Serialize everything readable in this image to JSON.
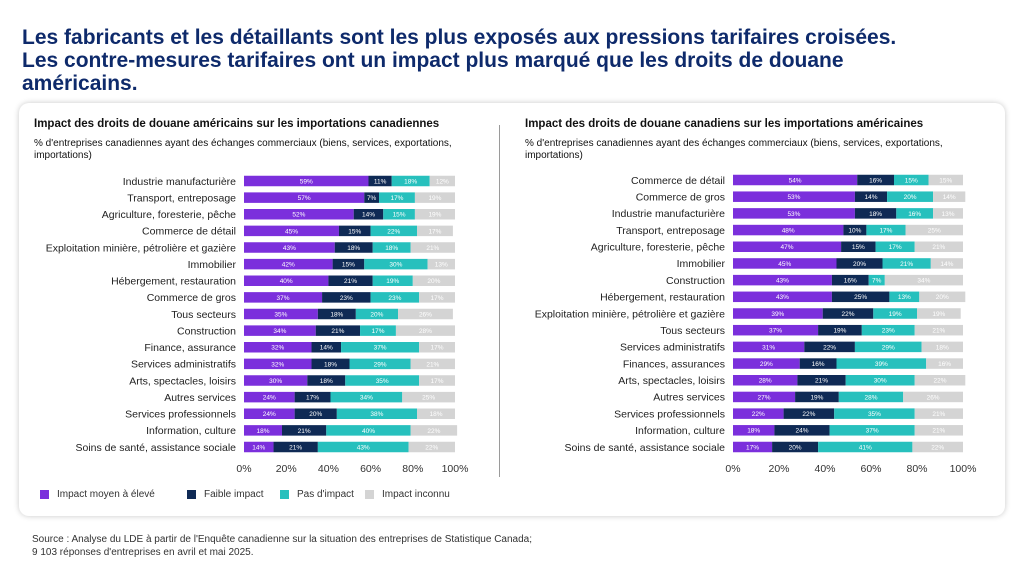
{
  "title": {
    "line1": "Les fabricants et les détaillants sont les plus exposés aux pressions tarifaires croisées.",
    "line2": "Les contre-mesures tarifaires ont un impact plus marqué que les droits de douane",
    "line3": "américains."
  },
  "legend": {
    "high": "Impact moyen à élevé",
    "low": "Faible impact",
    "none": "Pas d'impact",
    "unknown": "Impact inconnu"
  },
  "colors": {
    "high": "#7b2fdc",
    "low": "#0f2a55",
    "none": "#27c0bd",
    "unknown": "#d4d4d4",
    "title": "#0e2a6b"
  },
  "source": {
    "line1": "Source : Analyse du LDE à partir de l'Enquête canadienne sur la situation des entreprises de Statistique Canada;",
    "line2": "9 103 réponses d'entreprises en avril et mai 2025."
  },
  "chart_data": [
    {
      "type": "bar",
      "orientation": "horizontal",
      "stacked": true,
      "title": "Impact des droits de douane américains sur les importations canadiennes",
      "subtitle": "% d'entreprises canadiennes ayant des échanges commerciaux (biens, services, exportations, importations)",
      "xlim": [
        0,
        100
      ],
      "x_ticks": [
        "0%",
        "20%",
        "40%",
        "60%",
        "80%",
        "100%"
      ],
      "legend_position": "bottom-left",
      "categories": [
        "Industrie manufacturière",
        "Transport, entreposage",
        "Agriculture, foresterie, pêche",
        "Commerce de détail",
        "Exploitation minière, pétrolière et gazière",
        "Immobilier",
        "Hébergement, restauration",
        "Commerce de gros",
        "Tous secteurs",
        "Construction",
        "Finance, assurance",
        "Services administratifs",
        "Arts, spectacles, loisirs",
        "Autres services",
        "Services professionnels",
        "Information, culture",
        "Soins de santé, assistance sociale"
      ],
      "series": [
        {
          "name": "Impact moyen à élevé",
          "values": [
            59,
            57,
            52,
            45,
            43,
            42,
            40,
            37,
            35,
            34,
            32,
            32,
            30,
            24,
            24,
            18,
            14
          ]
        },
        {
          "name": "Faible impact",
          "values": [
            11,
            7,
            14,
            15,
            18,
            15,
            21,
            23,
            18,
            21,
            14,
            18,
            18,
            17,
            20,
            21,
            21
          ]
        },
        {
          "name": "Pas d'impact",
          "values": [
            18,
            17,
            15,
            22,
            18,
            30,
            19,
            23,
            20,
            17,
            37,
            29,
            35,
            34,
            38,
            40,
            43
          ]
        },
        {
          "name": "Impact inconnu",
          "values": [
            12,
            19,
            19,
            17,
            21,
            13,
            20,
            17,
            26,
            28,
            17,
            21,
            17,
            25,
            18,
            22,
            22
          ]
        }
      ]
    },
    {
      "type": "bar",
      "orientation": "horizontal",
      "stacked": true,
      "title": "Impact des droits de douane canadiens sur les importations américaines",
      "subtitle": "% d'entreprises canadiennes ayant des échanges commerciaux (biens, services, exportations, importations)",
      "xlim": [
        0,
        100
      ],
      "x_ticks": [
        "0%",
        "20%",
        "40%",
        "60%",
        "80%",
        "100%"
      ],
      "categories": [
        "Commerce de détail",
        "Commerce de gros",
        "Industrie manufacturière",
        "Transport, entreposage",
        "Agriculture, foresterie, pêche",
        "Immobilier",
        "Construction",
        "Hébergement, restauration",
        "Exploitation minière, pétrolière et gazière",
        "Tous secteurs",
        "Services administratifs",
        "Finances, assurances",
        "Arts, spectacles, loisirs",
        "Autres services",
        "Services professionnels",
        "Information, culture",
        "Soins de santé, assistance sociale"
      ],
      "series": [
        {
          "name": "Impact moyen à élevé",
          "values": [
            54,
            53,
            53,
            48,
            47,
            45,
            43,
            43,
            39,
            37,
            31,
            29,
            28,
            27,
            22,
            18,
            17
          ]
        },
        {
          "name": "Faible impact",
          "values": [
            16,
            14,
            18,
            10,
            15,
            20,
            16,
            25,
            22,
            19,
            22,
            16,
            21,
            19,
            22,
            24,
            20
          ]
        },
        {
          "name": "Pas d'impact",
          "values": [
            15,
            20,
            16,
            17,
            17,
            21,
            7,
            13,
            19,
            23,
            29,
            39,
            30,
            28,
            35,
            37,
            41
          ]
        },
        {
          "name": "Impact inconnu",
          "values": [
            15,
            14,
            13,
            25,
            21,
            14,
            34,
            20,
            19,
            21,
            18,
            16,
            22,
            26,
            21,
            21,
            22
          ]
        }
      ]
    }
  ]
}
